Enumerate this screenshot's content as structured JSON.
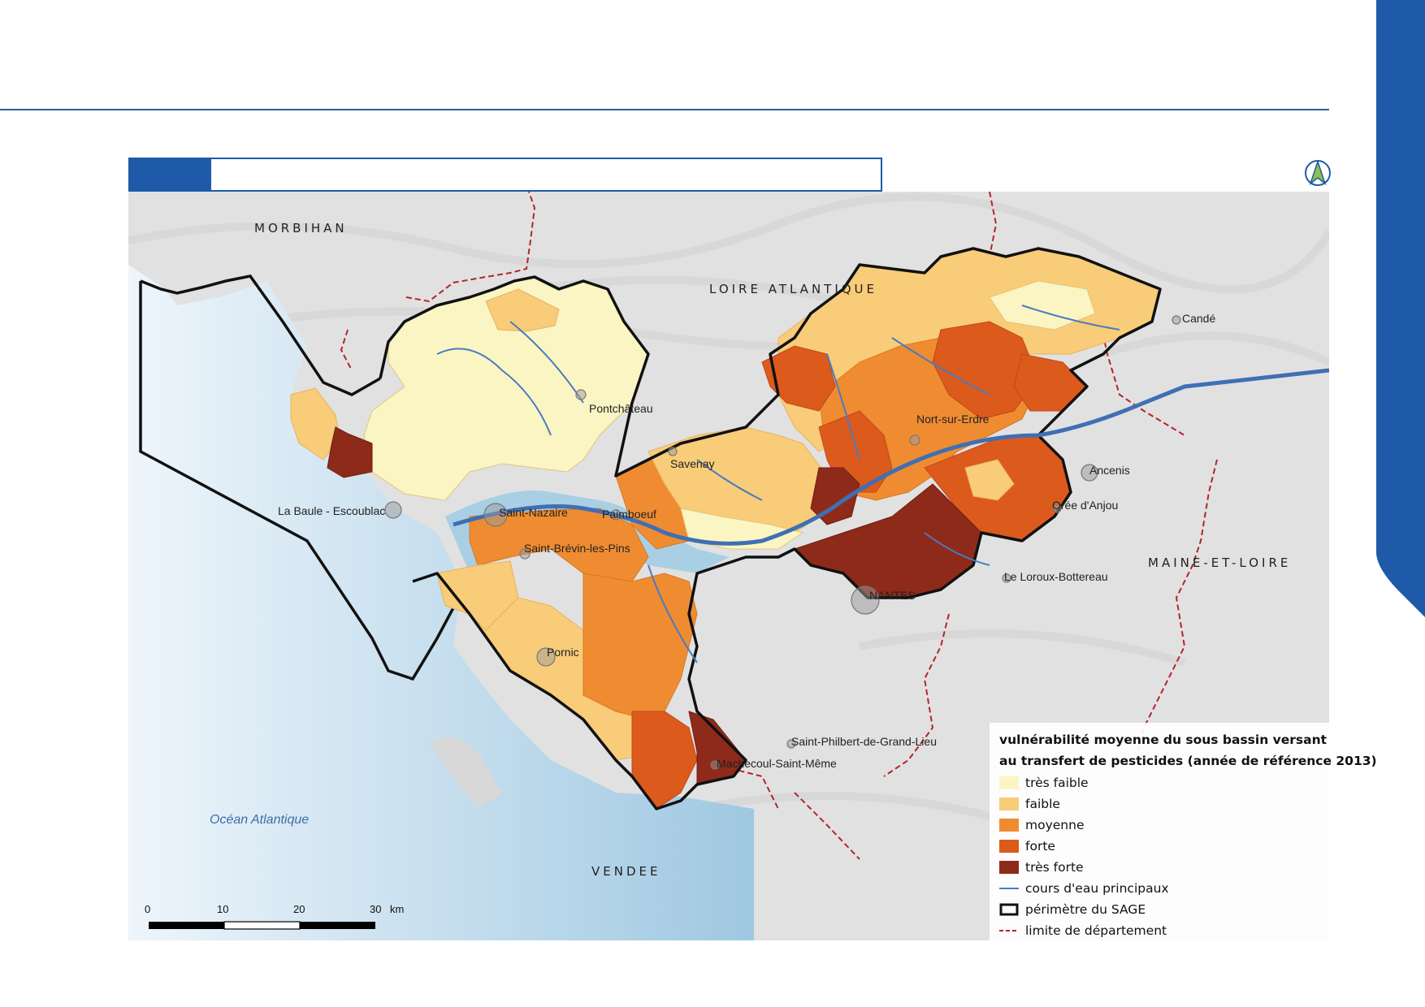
{
  "colors": {
    "tres_faible": "#fbf5c3",
    "faible": "#f8cc78",
    "moyenne": "#ef8c31",
    "forte": "#dc5a1c",
    "tres_forte": "#8e2a1a",
    "river": "#4a7bc0",
    "dept_limit": "#b3242c",
    "sea": "#a9cfe4",
    "accent": "#1f5aa8"
  },
  "map": {
    "departments": [
      "MORBIHAN",
      "LOIRE ATLANTIQUE",
      "MAINE-ET-LOIRE",
      "VENDEE"
    ],
    "ocean_label": "Océan Atlantique",
    "towns": [
      "Pontchâteau",
      "Savenay",
      "La Baule - Escoublac",
      "Saint-Nazaire",
      "Paimboeuf",
      "Saint-Brévin-les-Pins",
      "Pornic",
      "NANTES",
      "Nort-sur-Erdre",
      "Ancenis",
      "Orée d'Anjou",
      "Le Loroux-Bottereau",
      "Candé",
      "Saint-Philbert-de-Grand-Lieu",
      "Machecoul-Saint-Même"
    ]
  },
  "legend": {
    "title_line1": "vulnérabilité moyenne du sous bassin versant",
    "title_line2": "au transfert de pesticides (année de référence 2013)",
    "items": [
      {
        "label": "très faible"
      },
      {
        "label": "faible"
      },
      {
        "label": "moyenne"
      },
      {
        "label": "forte"
      },
      {
        "label": "très forte"
      },
      {
        "label": "cours d'eau principaux"
      },
      {
        "label": "périmètre du SAGE"
      },
      {
        "label": "limite de département"
      }
    ]
  },
  "scale": {
    "ticks": [
      "0",
      "10",
      "20",
      "30"
    ],
    "unit": "km"
  }
}
